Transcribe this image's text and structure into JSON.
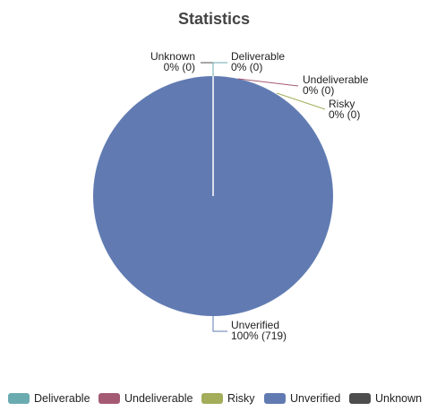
{
  "chart_data": {
    "type": "pie",
    "title": "Statistics",
    "slices": [
      {
        "name": "Deliverable",
        "value": 0,
        "percent_label": "0% (0)",
        "color": "#6aabb0"
      },
      {
        "name": "Undeliverable",
        "value": 0,
        "percent_label": "0% (0)",
        "color": "#a55a74"
      },
      {
        "name": "Risky",
        "value": 0,
        "percent_label": "0% (0)",
        "color": "#a3ad5a"
      },
      {
        "name": "Unverified",
        "value": 719,
        "percent_label": "100% (719)",
        "color": "#617bb2"
      },
      {
        "name": "Unknown",
        "value": 0,
        "percent_label": "0% (0)",
        "color": "#4d4d4d"
      }
    ],
    "legend_position": "bottom"
  }
}
